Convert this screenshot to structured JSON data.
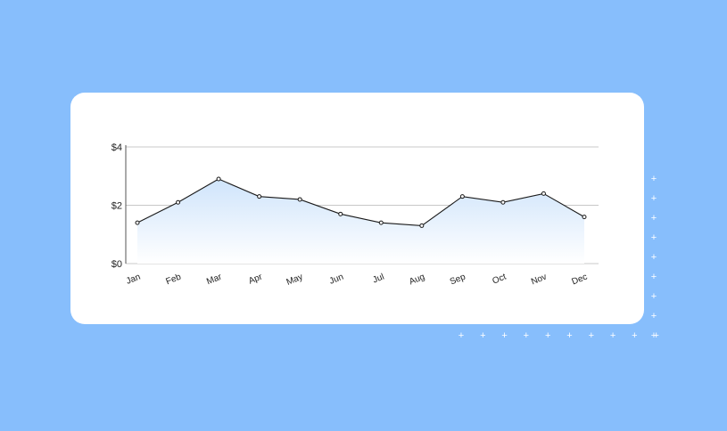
{
  "chart_data": {
    "type": "area",
    "categories": [
      "Jan",
      "Feb",
      "Mar",
      "Apr",
      "May",
      "Jun",
      "Jul",
      "Aug",
      "Sep",
      "Oct",
      "Nov",
      "Dec"
    ],
    "values": [
      1.4,
      2.1,
      2.9,
      2.3,
      2.2,
      1.7,
      1.4,
      1.3,
      2.3,
      2.1,
      2.4,
      1.6
    ],
    "title": "",
    "xlabel": "",
    "ylabel": "",
    "ylim": [
      0,
      4
    ],
    "y_ticks": [
      {
        "value": 0,
        "label": "$0"
      },
      {
        "value": 2,
        "label": "$2"
      },
      {
        "value": 4,
        "label": "$4"
      }
    ],
    "grid": true,
    "legend": "none",
    "colors": {
      "line": "#1A1A1A",
      "fill_top": "#CFE4FB",
      "fill_bottom": "#FFFFFF",
      "grid": "#C8C8C8",
      "marker_fill": "#FFFFFF"
    }
  },
  "decoration": {
    "background_color": "#87BEFC",
    "card_color": "#FFFFFF",
    "plus_glyph": "+",
    "plus_color": "#FFFFFF"
  }
}
